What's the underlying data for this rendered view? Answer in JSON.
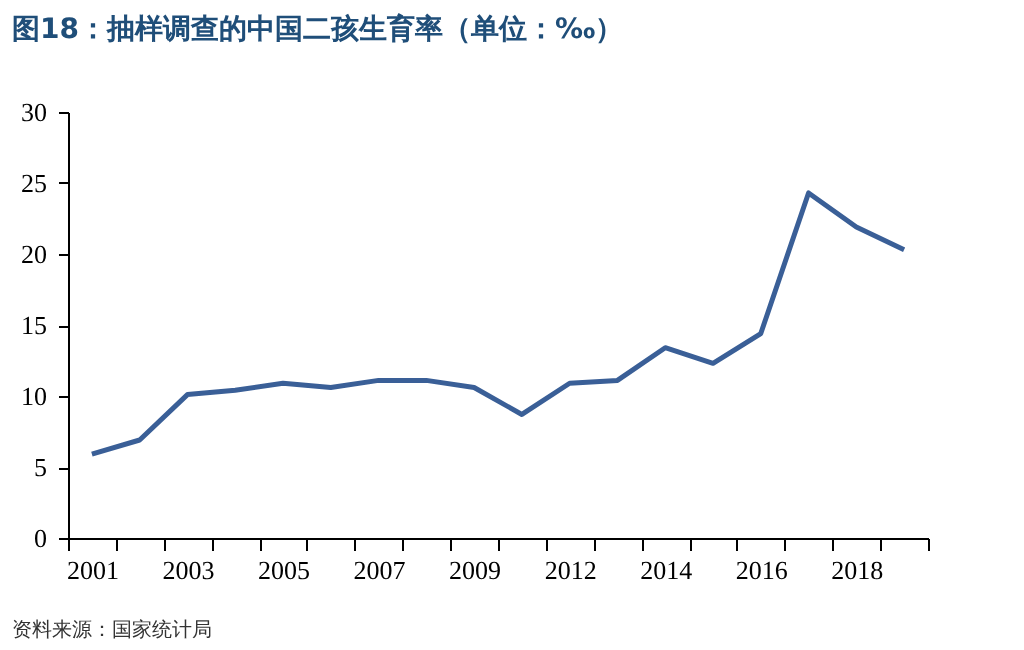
{
  "chart_data": {
    "type": "line",
    "title": "图18：抽样调查的中国二孩生育率（单位：‰）",
    "categories": [
      "2001",
      null,
      "2003",
      null,
      "2005",
      null,
      "2007",
      null,
      "2009",
      null,
      "2012",
      null,
      "2014",
      null,
      "2016",
      null,
      "2018",
      null
    ],
    "series": [
      {
        "color": "#3a5f97",
        "values": [
          5.9,
          6.9,
          10.1,
          10.4,
          10.9,
          10.6,
          11.1,
          11.1,
          10.6,
          8.7,
          10.9,
          11.1,
          13.4,
          12.3,
          14.4,
          24.3,
          21.9,
          20.3
        ]
      }
    ],
    "ylim": [
      0,
      30
    ],
    "yticks": [
      0,
      5,
      10,
      15,
      20,
      25,
      30
    ],
    "grid": false,
    "legend": false,
    "marker": "none",
    "line_style": "solid",
    "annotations": [
      "资料来源：国家统计局"
    ]
  }
}
